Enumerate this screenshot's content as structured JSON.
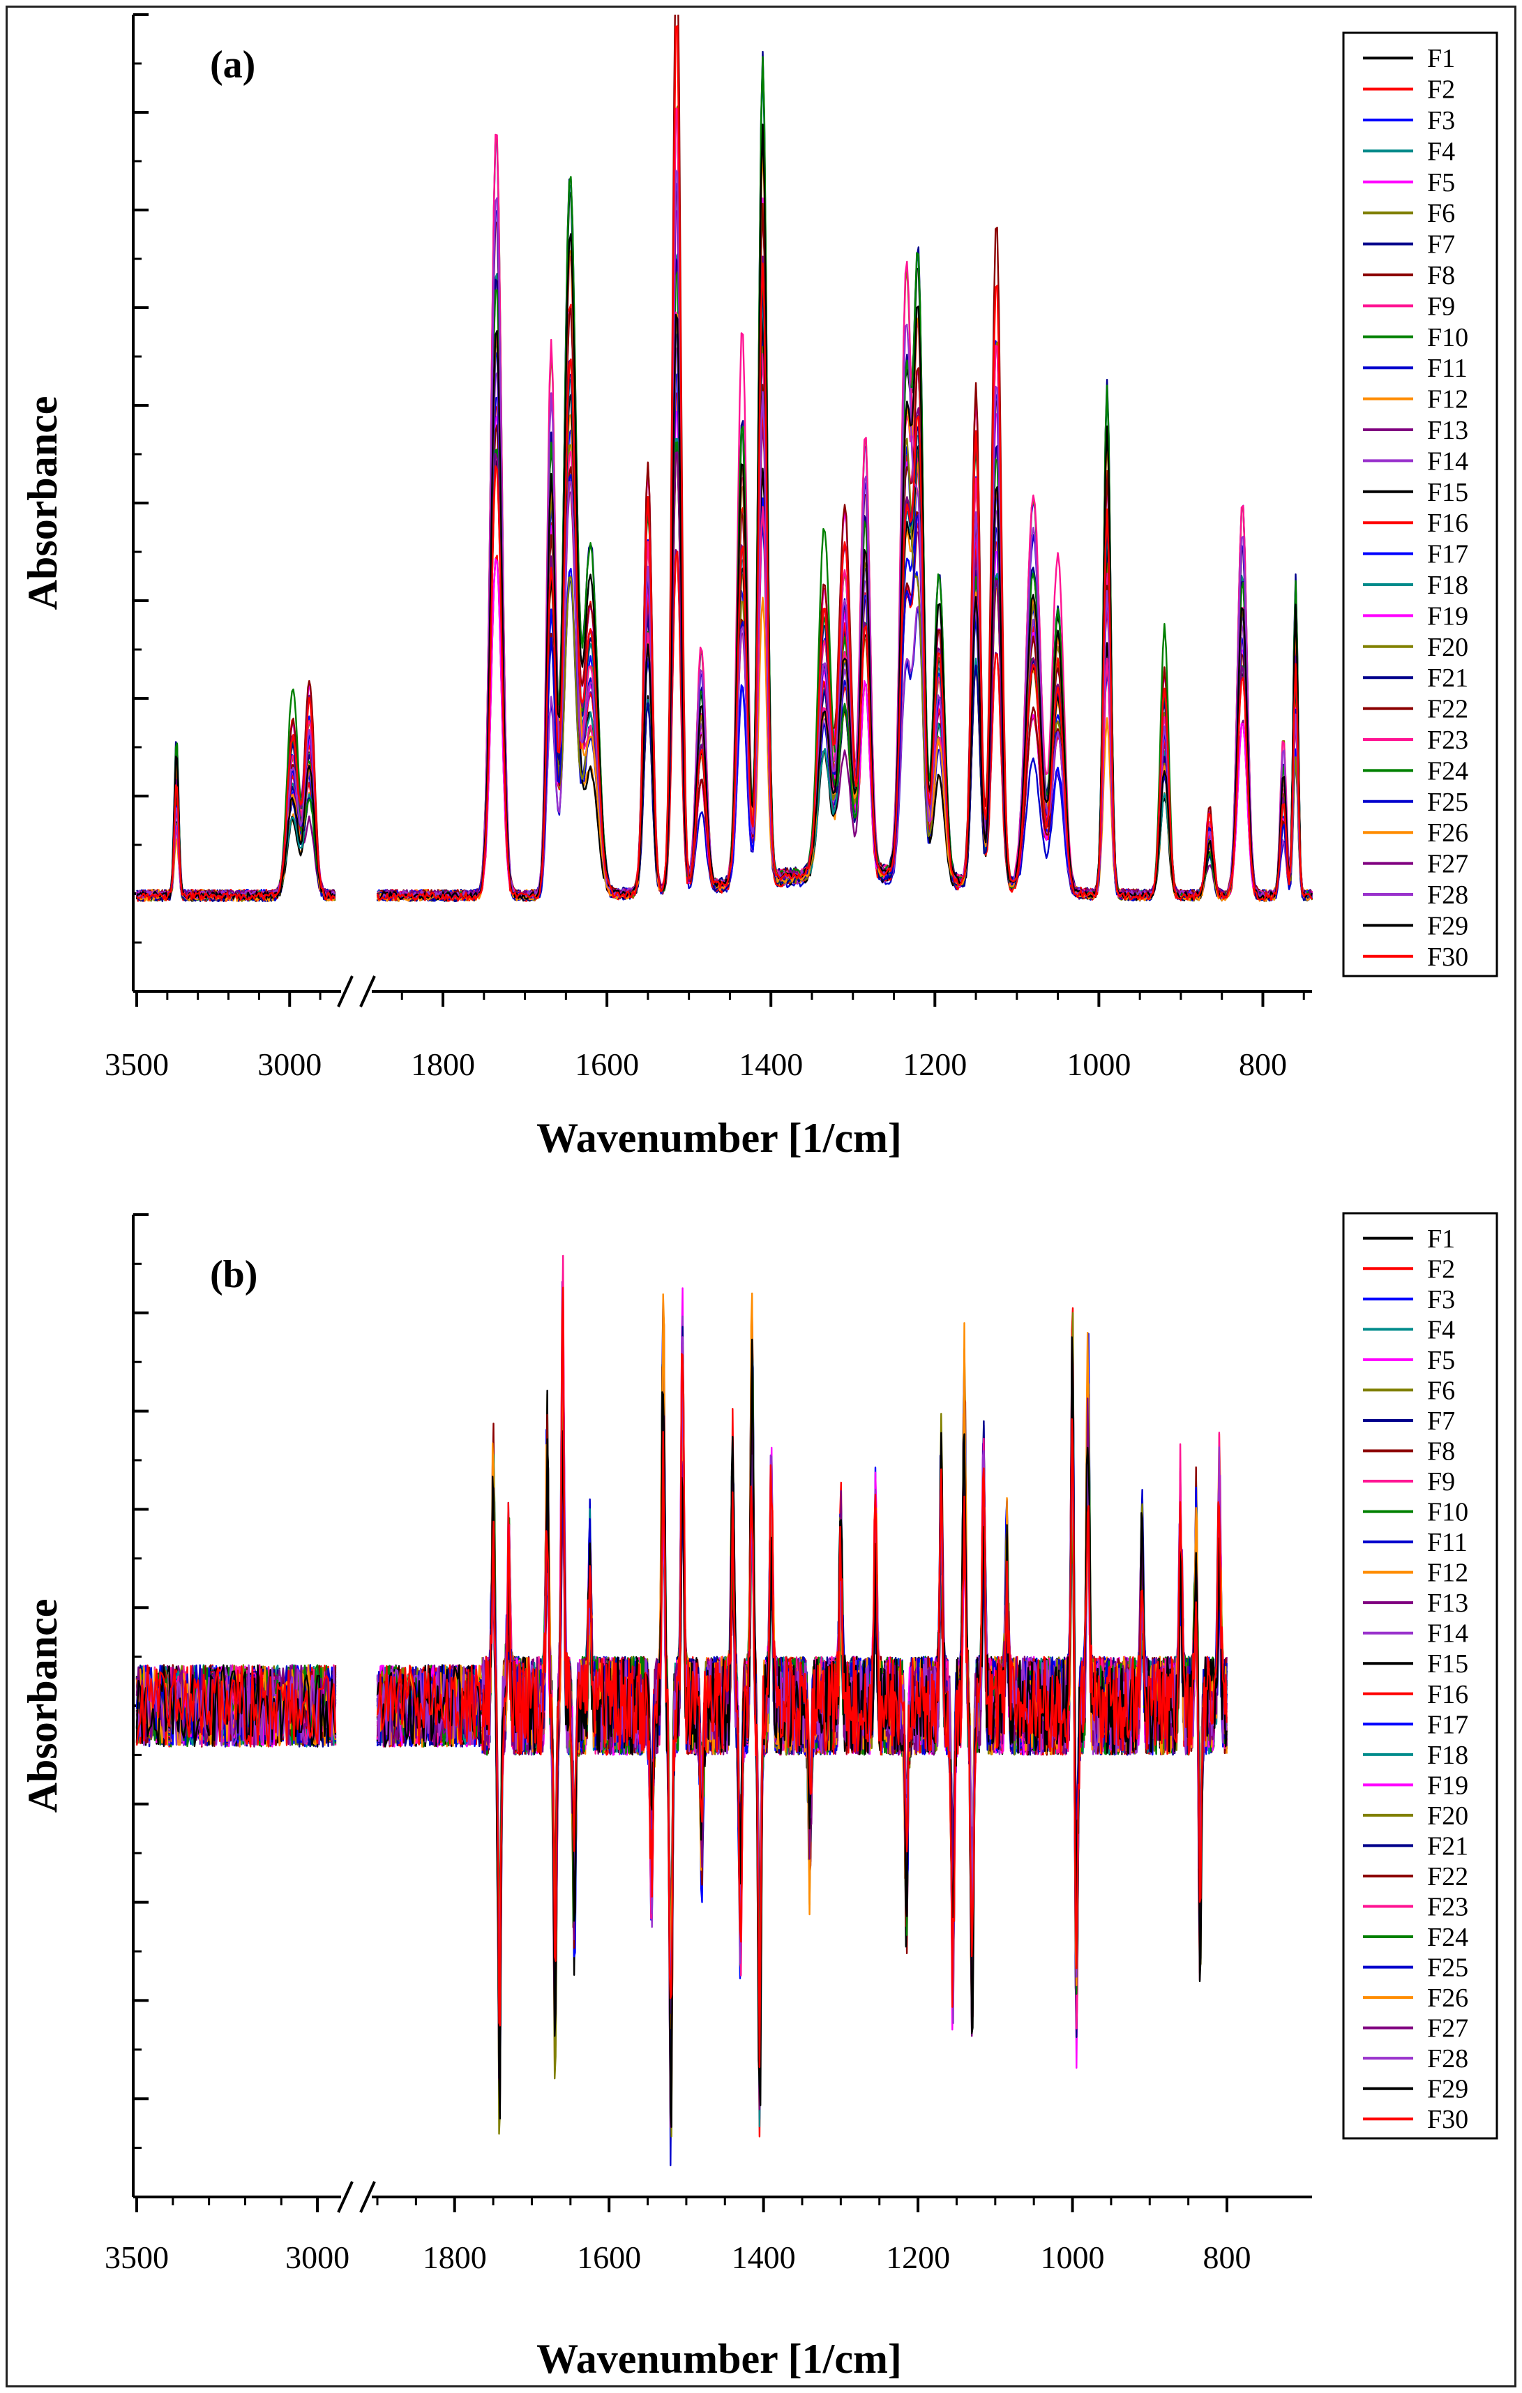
{
  "colors": [
    "#000000",
    "#ff0000",
    "#0000ff",
    "#008b8b",
    "#ff00ff",
    "#808000",
    "#00008b",
    "#8b0000",
    "#ff1493",
    "#008000",
    "#0000cd",
    "#ff8c00",
    "#800080",
    "#9932cc",
    "#000000",
    "#ff0000",
    "#0000ff",
    "#008b8b",
    "#ff00ff",
    "#808000",
    "#00008b",
    "#8b0000",
    "#ff1493",
    "#008000",
    "#0000cd",
    "#ff8c00",
    "#800080",
    "#9932cc",
    "#000000",
    "#ff0000"
  ],
  "chart_data": [
    {
      "panel": "(a)",
      "type": "line",
      "title": "",
      "xlabel": "Wavenumber [1/cm]",
      "ylabel": "Absorbance",
      "x_ticks": [
        3500,
        3000,
        1800,
        1600,
        1400,
        1200,
        1000,
        800
      ],
      "x_segments": [
        [
          3500,
          2850
        ],
        [
          1880,
          740
        ]
      ],
      "x_break": "between 2850 and 1880",
      "legend_position": "right",
      "series_names": [
        "F1",
        "F2",
        "F3",
        "F4",
        "F5",
        "F6",
        "F7",
        "F8",
        "F9",
        "F10",
        "F11",
        "F12",
        "F13",
        "F14",
        "F15",
        "F16",
        "F17",
        "F18",
        "F19",
        "F20",
        "F21",
        "F22",
        "F23",
        "F24",
        "F25",
        "F26",
        "F27",
        "F28",
        "F29",
        "F30"
      ],
      "peaks": [
        {
          "x": 3370,
          "h": 0.14,
          "w": 10
        },
        {
          "x": 2990,
          "h": 0.17,
          "w": 25
        },
        {
          "x": 2935,
          "h": 0.19,
          "w": 22
        },
        {
          "x": 1735,
          "h": 0.74,
          "w": 9
        },
        {
          "x": 1668,
          "h": 0.48,
          "w": 7
        },
        {
          "x": 1645,
          "h": 0.68,
          "w": 10
        },
        {
          "x": 1620,
          "h": 0.3,
          "w": 12
        },
        {
          "x": 1550,
          "h": 0.4,
          "w": 7
        },
        {
          "x": 1515,
          "h": 0.81,
          "w": 7
        },
        {
          "x": 1485,
          "h": 0.22,
          "w": 8
        },
        {
          "x": 1435,
          "h": 0.46,
          "w": 8
        },
        {
          "x": 1410,
          "h": 0.74,
          "w": 7
        },
        {
          "x": 1335,
          "h": 0.28,
          "w": 10
        },
        {
          "x": 1310,
          "h": 0.32,
          "w": 10
        },
        {
          "x": 1285,
          "h": 0.42,
          "w": 8
        },
        {
          "x": 1235,
          "h": 0.52,
          "w": 9
        },
        {
          "x": 1220,
          "h": 0.56,
          "w": 8
        },
        {
          "x": 1195,
          "h": 0.26,
          "w": 9
        },
        {
          "x": 1150,
          "h": 0.46,
          "w": 7
        },
        {
          "x": 1125,
          "h": 0.56,
          "w": 8
        },
        {
          "x": 1080,
          "h": 0.36,
          "w": 12
        },
        {
          "x": 1050,
          "h": 0.28,
          "w": 10
        },
        {
          "x": 990,
          "h": 0.46,
          "w": 6
        },
        {
          "x": 920,
          "h": 0.22,
          "w": 7
        },
        {
          "x": 865,
          "h": 0.08,
          "w": 6
        },
        {
          "x": 825,
          "h": 0.38,
          "w": 8
        },
        {
          "x": 775,
          "h": 0.14,
          "w": 5
        },
        {
          "x": 760,
          "h": 0.3,
          "w": 4
        }
      ],
      "ylim": [
        -0.1,
        0.92
      ]
    },
    {
      "panel": "(b)",
      "type": "line",
      "title": "",
      "xlabel": "Wavenumber [1/cm]",
      "ylabel": "Absorbance",
      "x_ticks": [
        3500,
        3000,
        1800,
        1600,
        1400,
        1200,
        1000,
        800
      ],
      "x_segments": [
        [
          3500,
          2950
        ],
        [
          1900,
          800
        ]
      ],
      "x_break": "between 2950 and 1900",
      "legend_position": "right",
      "series_names": [
        "F1",
        "F2",
        "F3",
        "F4",
        "F5",
        "F6",
        "F7",
        "F8",
        "F9",
        "F10",
        "F11",
        "F12",
        "F13",
        "F14",
        "F15",
        "F16",
        "F17",
        "F18",
        "F19",
        "F20",
        "F21",
        "F22",
        "F23",
        "F24",
        "F25",
        "F26",
        "F27",
        "F28",
        "F29",
        "F30"
      ],
      "spikes": [
        {
          "x": 1750,
          "h": 0.6,
          "sign": 1
        },
        {
          "x": 1742,
          "h": 0.94,
          "sign": -1
        },
        {
          "x": 1730,
          "h": 0.4,
          "sign": 1
        },
        {
          "x": 1680,
          "h": 0.66,
          "sign": 1
        },
        {
          "x": 1670,
          "h": 0.79,
          "sign": -1
        },
        {
          "x": 1660,
          "h": 0.96,
          "sign": 1
        },
        {
          "x": 1645,
          "h": 0.56,
          "sign": -1
        },
        {
          "x": 1625,
          "h": 0.38,
          "sign": 1
        },
        {
          "x": 1545,
          "h": 0.45,
          "sign": -1
        },
        {
          "x": 1530,
          "h": 0.96,
          "sign": 1
        },
        {
          "x": 1520,
          "h": 1.0,
          "sign": -1
        },
        {
          "x": 1505,
          "h": 0.88,
          "sign": 1
        },
        {
          "x": 1480,
          "h": 0.36,
          "sign": -1
        },
        {
          "x": 1440,
          "h": 0.6,
          "sign": 1
        },
        {
          "x": 1430,
          "h": 0.59,
          "sign": -1
        },
        {
          "x": 1415,
          "h": 0.91,
          "sign": 1
        },
        {
          "x": 1405,
          "h": 0.96,
          "sign": -1
        },
        {
          "x": 1390,
          "h": 0.55,
          "sign": 1
        },
        {
          "x": 1340,
          "h": 0.38,
          "sign": -1
        },
        {
          "x": 1300,
          "h": 0.43,
          "sign": 1
        },
        {
          "x": 1255,
          "h": 0.48,
          "sign": 1
        },
        {
          "x": 1215,
          "h": 0.5,
          "sign": -1
        },
        {
          "x": 1170,
          "h": 0.58,
          "sign": 1
        },
        {
          "x": 1155,
          "h": 0.68,
          "sign": -1
        },
        {
          "x": 1140,
          "h": 0.8,
          "sign": 1
        },
        {
          "x": 1130,
          "h": 0.71,
          "sign": -1
        },
        {
          "x": 1115,
          "h": 0.62,
          "sign": 1
        },
        {
          "x": 1085,
          "h": 0.38,
          "sign": 1
        },
        {
          "x": 1000,
          "h": 0.88,
          "sign": 1
        },
        {
          "x": 995,
          "h": 0.75,
          "sign": -1
        },
        {
          "x": 980,
          "h": 0.85,
          "sign": 1
        },
        {
          "x": 910,
          "h": 0.4,
          "sign": 1
        },
        {
          "x": 860,
          "h": 0.52,
          "sign": 1
        },
        {
          "x": 840,
          "h": 0.5,
          "sign": 1
        },
        {
          "x": 835,
          "h": 0.58,
          "sign": -1
        },
        {
          "x": 810,
          "h": 0.56,
          "sign": 1
        }
      ],
      "ylim": [
        -1.2,
        1.2
      ]
    }
  ]
}
